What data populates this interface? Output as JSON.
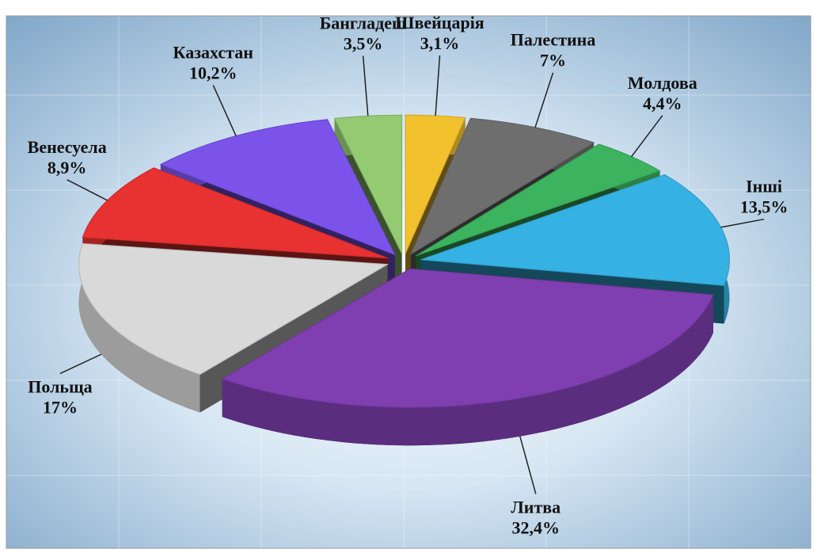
{
  "chart_data": {
    "type": "pie3d",
    "categories": [
      "Швейцарія",
      "Палестина",
      "Молдова",
      "Інші",
      "Литва",
      "Польща",
      "Венесуела",
      "Казахстан",
      "Бангладеш"
    ],
    "values": [
      3.1,
      7,
      4.4,
      13.5,
      32.4,
      17,
      8.9,
      10.2,
      3.5
    ],
    "value_labels": [
      "3,1%",
      "7%",
      "4,4%",
      "13,5%",
      "32,4%",
      "17%",
      "8,9%",
      "10,2%",
      "3,5%"
    ],
    "colors": [
      "#f2c12e",
      "#6e6e6e",
      "#3cb35f",
      "#35b2e3",
      "#7f3fb0",
      "#d9d9d9",
      "#e83131",
      "#7b52ea",
      "#93ca72"
    ]
  }
}
